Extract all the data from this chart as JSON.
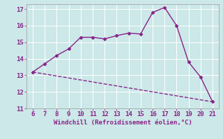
{
  "xlabel": "Windchill (Refroidissement éolien,°C)",
  "xlim": [
    5.5,
    21.5
  ],
  "ylim": [
    11,
    17.3
  ],
  "xticks": [
    6,
    7,
    8,
    9,
    10,
    11,
    12,
    13,
    14,
    15,
    16,
    17,
    18,
    19,
    20,
    21
  ],
  "yticks": [
    11,
    12,
    13,
    14,
    15,
    16,
    17
  ],
  "bg_color": "#cce8e8",
  "line_color": "#882288",
  "line1_x": [
    6,
    7,
    8,
    9,
    10,
    11,
    12,
    13,
    14,
    15,
    16,
    17,
    18,
    19,
    20,
    21
  ],
  "line1_y": [
    13.2,
    13.7,
    14.2,
    14.6,
    15.3,
    15.3,
    15.2,
    15.4,
    15.55,
    15.5,
    16.8,
    17.1,
    16.0,
    13.8,
    12.9,
    11.4
  ],
  "line2_x": [
    6,
    21
  ],
  "line2_y": [
    13.2,
    11.4
  ],
  "markersize": 2.5,
  "linewidth": 1.0
}
